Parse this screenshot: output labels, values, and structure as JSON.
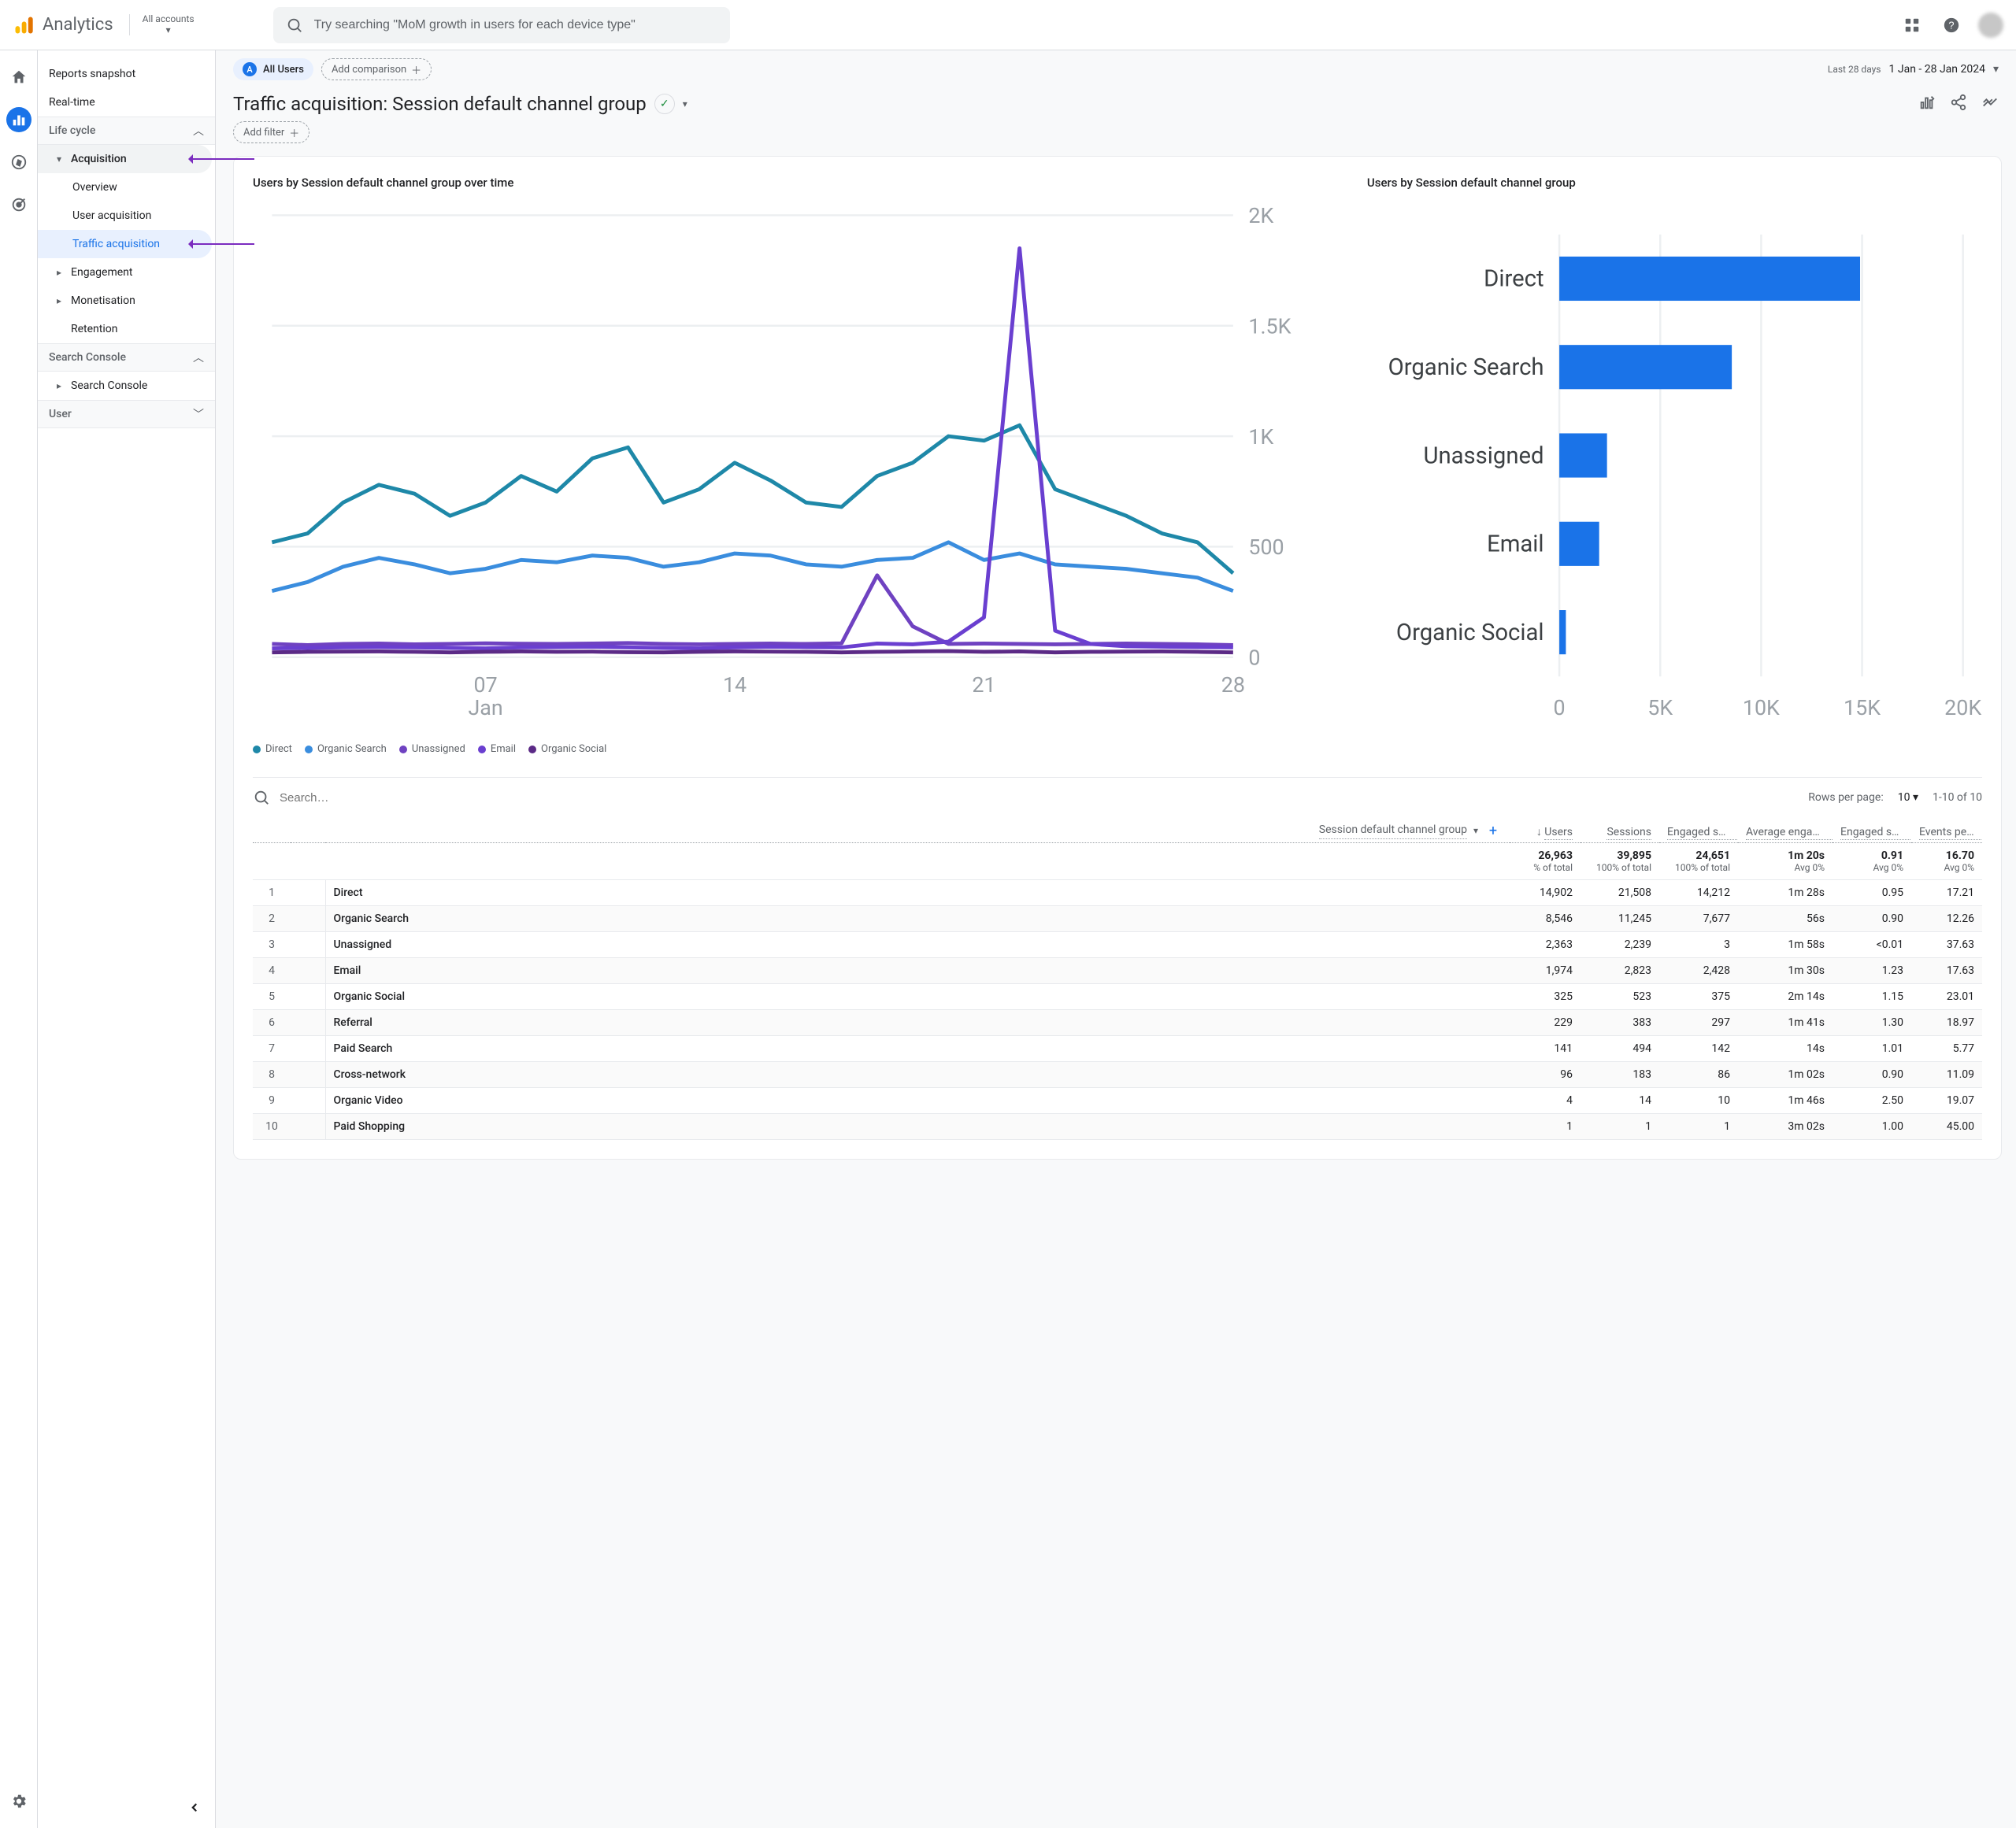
{
  "topbar": {
    "product": "Analytics",
    "account_label": "All accounts",
    "search_placeholder": "Try searching \"MoM growth in users for each device type\""
  },
  "nav": {
    "items": [
      {
        "label": "Reports snapshot"
      },
      {
        "label": "Real-time"
      }
    ],
    "groups": [
      {
        "label": "Life cycle",
        "children": [
          {
            "label": "Acquisition",
            "expandable": true,
            "highlight": true,
            "children": [
              {
                "label": "Overview"
              },
              {
                "label": "User acquisition"
              },
              {
                "label": "Traffic acquisition",
                "selected": true,
                "highlight": true
              }
            ]
          },
          {
            "label": "Engagement",
            "expandable": true
          },
          {
            "label": "Monetisation",
            "expandable": true
          },
          {
            "label": "Retention"
          }
        ]
      },
      {
        "label": "Search Console",
        "children": [
          {
            "label": "Search Console",
            "expandable": true
          }
        ]
      },
      {
        "label": "User",
        "collapsed": true
      }
    ]
  },
  "segments": {
    "audience_badge": "A",
    "audience_label": "All Users",
    "add_comparison": "Add comparison"
  },
  "date": {
    "range_label": "Last 28 days",
    "range_value": "1 Jan - 28 Jan 2024"
  },
  "page_title": "Traffic acquisition: Session default channel group",
  "add_filter": "Add filter",
  "line_chart": {
    "title": "Users by Session default channel group over time",
    "y_ticks": [
      "2K",
      "1.5K",
      "1K",
      "500",
      "0"
    ],
    "x_ticks": [
      "07\nJan",
      "14",
      "21",
      "28"
    ],
    "y_max": 2000,
    "series_colors": {
      "Direct": "#1e88a8",
      "Organic Search": "#3a8dde",
      "Unassigned": "#6f42c1",
      "Email": "#6a3fd0",
      "Organic Social": "#5b2a86"
    },
    "series": {
      "Direct": [
        520,
        560,
        700,
        780,
        740,
        640,
        700,
        820,
        750,
        900,
        950,
        700,
        760,
        880,
        800,
        700,
        680,
        820,
        880,
        1000,
        980,
        1050,
        760,
        700,
        640,
        560,
        520,
        380
      ],
      "Organic Search": [
        300,
        340,
        410,
        450,
        420,
        380,
        400,
        440,
        430,
        460,
        450,
        410,
        430,
        470,
        460,
        420,
        410,
        440,
        450,
        520,
        440,
        470,
        420,
        410,
        400,
        380,
        360,
        300
      ],
      "Unassigned": [
        60,
        55,
        60,
        62,
        58,
        60,
        63,
        61,
        60,
        62,
        64,
        60,
        58,
        60,
        62,
        60,
        63,
        370,
        140,
        60,
        62,
        60,
        58,
        60,
        62,
        60,
        58,
        55
      ],
      "Email": [
        40,
        42,
        44,
        46,
        44,
        42,
        40,
        44,
        46,
        48,
        44,
        42,
        40,
        44,
        48,
        46,
        44,
        62,
        58,
        70,
        180,
        1850,
        120,
        60,
        50,
        48,
        46,
        44
      ],
      "Organic Social": [
        22,
        24,
        25,
        26,
        24,
        22,
        24,
        26,
        24,
        25,
        23,
        22,
        24,
        26,
        25,
        24,
        22,
        24,
        26,
        28,
        24,
        26,
        22,
        24,
        25,
        26,
        24,
        22
      ]
    },
    "legend": [
      "Direct",
      "Organic Search",
      "Unassigned",
      "Email",
      "Organic Social"
    ]
  },
  "bar_chart": {
    "title": "Users by Session default channel group",
    "x_ticks": [
      "0",
      "5K",
      "10K",
      "15K",
      "20K"
    ],
    "x_max": 20000,
    "bar_color": "#1a73e8",
    "bars": [
      {
        "label": "Direct",
        "value": 14902
      },
      {
        "label": "Organic Search",
        "value": 8546
      },
      {
        "label": "Unassigned",
        "value": 2363
      },
      {
        "label": "Email",
        "value": 1974
      },
      {
        "label": "Organic Social",
        "value": 325
      }
    ]
  },
  "table": {
    "search_placeholder": "Search…",
    "rows_per_page_label": "Rows per page:",
    "rows_per_page_value": "10",
    "pager_text": "1-10 of 10",
    "dim_header": "Session default channel group",
    "columns": [
      "Users",
      "Sessions",
      "Engaged sessions",
      "Average engagement time per session",
      "Engaged sessions per user",
      "Events per session"
    ],
    "totals": {
      "values": [
        "26,963",
        "39,895",
        "24,651",
        "1m 20s",
        "0.91",
        "16.70"
      ],
      "subs": [
        "% of total",
        "100% of total",
        "100% of total",
        "Avg 0%",
        "Avg 0%",
        "Avg 0%"
      ]
    },
    "rows": [
      {
        "n": 1,
        "dim": "Direct",
        "v": [
          "14,902",
          "21,508",
          "14,212",
          "1m 28s",
          "0.95",
          "17.21"
        ]
      },
      {
        "n": 2,
        "dim": "Organic Search",
        "v": [
          "8,546",
          "11,245",
          "7,677",
          "56s",
          "0.90",
          "12.26"
        ]
      },
      {
        "n": 3,
        "dim": "Unassigned",
        "v": [
          "2,363",
          "2,239",
          "3",
          "1m 58s",
          "<0.01",
          "37.63"
        ]
      },
      {
        "n": 4,
        "dim": "Email",
        "v": [
          "1,974",
          "2,823",
          "2,428",
          "1m 30s",
          "1.23",
          "17.63"
        ]
      },
      {
        "n": 5,
        "dim": "Organic Social",
        "v": [
          "325",
          "523",
          "375",
          "2m 14s",
          "1.15",
          "23.01"
        ]
      },
      {
        "n": 6,
        "dim": "Referral",
        "v": [
          "229",
          "383",
          "297",
          "1m 41s",
          "1.30",
          "18.97"
        ]
      },
      {
        "n": 7,
        "dim": "Paid Search",
        "v": [
          "141",
          "494",
          "142",
          "14s",
          "1.01",
          "5.77"
        ]
      },
      {
        "n": 8,
        "dim": "Cross-network",
        "v": [
          "96",
          "183",
          "86",
          "1m 02s",
          "0.90",
          "11.09"
        ]
      },
      {
        "n": 9,
        "dim": "Organic Video",
        "v": [
          "4",
          "14",
          "10",
          "1m 46s",
          "2.50",
          "19.07"
        ]
      },
      {
        "n": 10,
        "dim": "Paid Shopping",
        "v": [
          "1",
          "1",
          "1",
          "3m 02s",
          "1.00",
          "45.00"
        ]
      }
    ]
  }
}
